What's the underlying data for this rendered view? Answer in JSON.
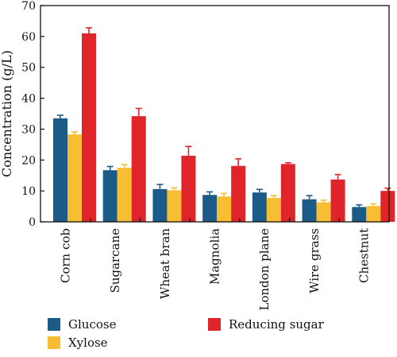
{
  "chart_data": {
    "type": "bar",
    "ylabel": "Concentration (g/L)",
    "ylim": [
      0,
      70
    ],
    "yticks": [
      0,
      10,
      20,
      30,
      40,
      50,
      60,
      70
    ],
    "grid": false,
    "legend_position": "bottom",
    "categories": [
      "Corn cob",
      "Sugarcane",
      "Wheat bran",
      "Magnolia",
      "London plane",
      "Wire grass",
      "Chestnut"
    ],
    "series": [
      {
        "name": "Glucose",
        "color": "#1c5a87",
        "values": [
          33.5,
          16.7,
          10.6,
          8.7,
          9.5,
          7.3,
          4.8
        ],
        "errors": [
          1.0,
          1.2,
          1.5,
          1.0,
          1.0,
          1.2,
          0.7
        ]
      },
      {
        "name": "Xylose",
        "color": "#f7bd33",
        "values": [
          28.3,
          17.5,
          10.2,
          8.2,
          7.7,
          6.3,
          5.1
        ],
        "errors": [
          0.8,
          1.0,
          0.8,
          1.0,
          0.8,
          0.7,
          0.7
        ]
      },
      {
        "name": "Reducing sugar",
        "color": "#e0252a",
        "values": [
          61.0,
          34.2,
          21.4,
          18.1,
          18.7,
          13.7,
          10.0
        ],
        "errors": [
          1.8,
          2.5,
          3.0,
          2.3,
          0.4,
          1.6,
          0.9
        ]
      }
    ]
  }
}
